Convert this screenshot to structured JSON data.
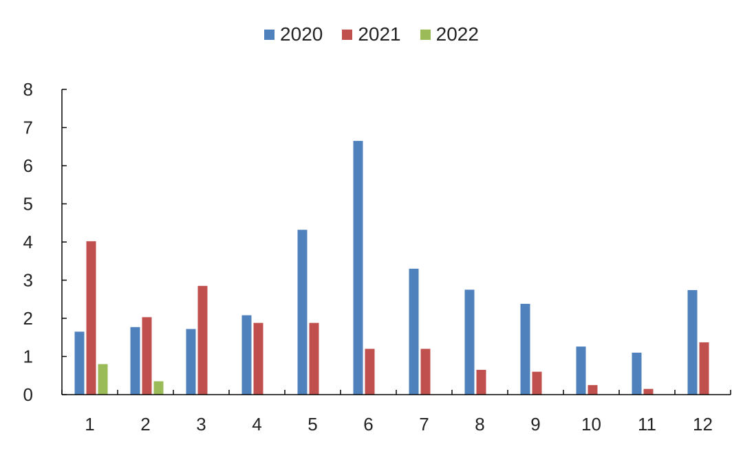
{
  "chart_data": {
    "type": "bar",
    "categories": [
      "1",
      "2",
      "3",
      "4",
      "5",
      "6",
      "7",
      "8",
      "9",
      "10",
      "11",
      "12"
    ],
    "series": [
      {
        "name": "2020",
        "color": "#4F81BD",
        "values": [
          1.65,
          1.77,
          1.72,
          2.08,
          4.32,
          6.65,
          3.3,
          2.75,
          2.38,
          1.26,
          1.1,
          2.74
        ]
      },
      {
        "name": "2021",
        "color": "#C0504D",
        "values": [
          4.02,
          2.03,
          2.85,
          1.88,
          1.88,
          1.2,
          1.2,
          0.65,
          0.6,
          0.25,
          0.15,
          1.37
        ]
      },
      {
        "name": "2022",
        "color": "#9BBB59",
        "values": [
          0.8,
          0.35,
          null,
          null,
          null,
          null,
          null,
          null,
          null,
          null,
          null,
          null
        ]
      }
    ],
    "ylim": [
      0,
      8
    ],
    "yticks": [
      "0",
      "1",
      "2",
      "3",
      "4",
      "5",
      "6",
      "7",
      "8"
    ],
    "legend_position": "top",
    "grid": false
  }
}
